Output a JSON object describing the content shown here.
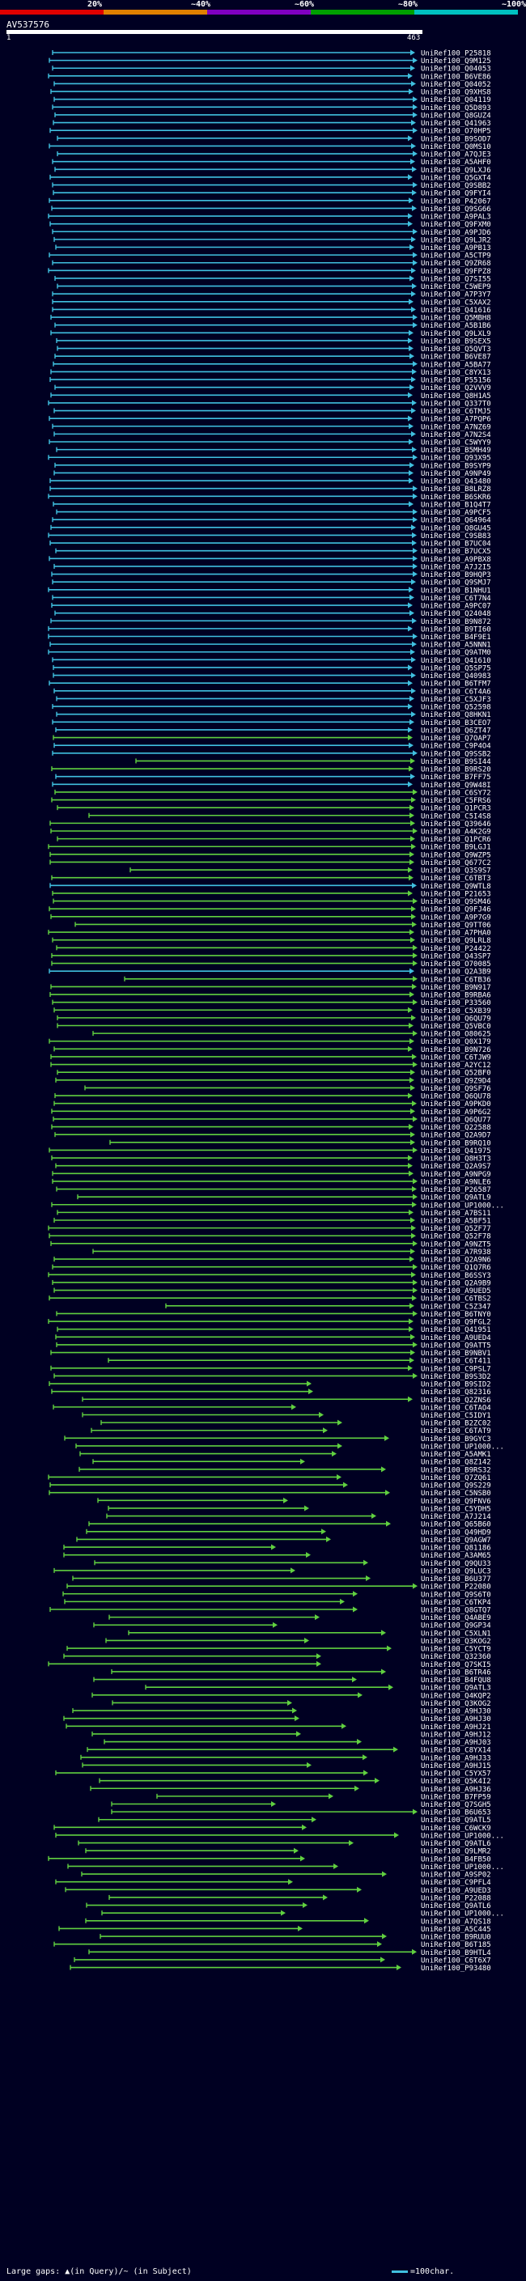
{
  "legend": {
    "labels": [
      "20%",
      "~40%",
      "~60%",
      "~80%",
      "~100%"
    ],
    "colors": [
      "#e00000",
      "#e08000",
      "#8000c0",
      "#00a000",
      "#00c0c0"
    ]
  },
  "query": {
    "title": "AV537576",
    "start": "1",
    "end": "463"
  },
  "footer": {
    "left": "Large gaps: ▲(in Query)/~ (in Subject)",
    "right": "=100char."
  },
  "colors": {
    "background": "#000022",
    "hit_blue": "#40c0e0",
    "hit_green": "#60d040",
    "hit_dark_green": "#208020",
    "text": "#ffffff"
  },
  "hit_names": [
    "UniRef100_P25818",
    "UniRef100_Q9M125",
    "UniRef100_Q04053",
    "UniRef100_B6VE86",
    "UniRef100_Q04052",
    "UniRef100_Q9XHS8",
    "UniRef100_Q04119",
    "UniRef100_Q5D893",
    "UniRef100_Q8GUZ4",
    "UniRef100_Q41963",
    "UniRef100_O70HP5",
    "UniRef100_B9SOD7",
    "UniRef100_Q0MS10",
    "UniRef100_A7QJE3",
    "UniRef100_A5AHF0",
    "UniRef100_Q9LXJ6",
    "UniRef100_Q5GXT4",
    "UniRef100_Q9SBB2",
    "UniRef100_Q9FYI4",
    "UniRef100_P42067",
    "UniRef100_Q9SG66",
    "UniRef100_A9PAL3",
    "UniRef100_Q9FXM0",
    "UniRef100_A9PJD6",
    "UniRef100_Q9LJR2",
    "UniRef100_A9PB13",
    "UniRef100_A5CTP9",
    "UniRef100_Q9ZR68",
    "UniRef100_Q9FPZ8",
    "UniRef100_Q7SI55",
    "UniRef100_C5WEP9",
    "UniRef100_A7P3Y7",
    "UniRef100_C5XAX2",
    "UniRef100_Q41616",
    "UniRef100_Q5MBH8",
    "UniRef100_A5B1B6",
    "UniRef100_Q9LXL9",
    "UniRef100_B9SEX5",
    "UniRef100_Q5QVT3",
    "UniRef100_B6VE87",
    "UniRef100_A5BA77",
    "UniRef100_C8YX13",
    "UniRef100_P55156",
    "UniRef100_Q2VVV9",
    "UniRef100_Q8H1A5",
    "UniRef100_Q337T0",
    "UniRef100_C6TMJ5",
    "UniRef100_A7PQP6",
    "UniRef100_A7NZ69",
    "UniRef100_A7N2S4",
    "UniRef100_C5WYY9",
    "UniRef100_B5MH49",
    "UniRef100_Q93X95",
    "UniRef100_B9SYP9",
    "UniRef100_A9NP49",
    "UniRef100_Q43480",
    "UniRef100_B8LRZ8",
    "UniRef100_B6SKR6",
    "UniRef100_B1Q4T7",
    "UniRef100_A9PCF5",
    "UniRef100_Q64964",
    "UniRef100_Q8GU45",
    "UniRef100_C9SB83",
    "UniRef100_B7UC04",
    "UniRef100_B7UCX5",
    "UniRef100_A9PBX8",
    "UniRef100_A7J2I5",
    "UniRef100_B9HQP3",
    "UniRef100_Q9SMJ7",
    "UniRef100_B1NHU1",
    "UniRef100_C6T7N4",
    "UniRef100_A9PC07",
    "UniRef100_Q24048",
    "UniRef100_B9N872",
    "UniRef100_B9TI60",
    "UniRef100_B4F9E1",
    "UniRef100_A5NNN1",
    "UniRef100_Q9ATM0",
    "UniRef100_Q41610",
    "UniRef100_Q5SP75",
    "UniRef100_Q40983",
    "UniRef100_B6TFM7",
    "UniRef100_C6T4A6",
    "UniRef100_C5XJF3",
    "UniRef100_Q52598",
    "UniRef100_Q8HKN1",
    "UniRef100_B3CEO7",
    "UniRef100_Q6ZT47",
    "UniRef100_Q7OAP7",
    "UniRef100_C9P4O4",
    "UniRef100_Q9SSB2",
    "UniRef100_B9SI44",
    "UniRef100_B9RS20",
    "UniRef100_B7FF75",
    "UniRef100_Q9W48I",
    "UniRef100_C6SY72",
    "UniRef100_C5FRS6",
    "UniRef100_Q1PCR3",
    "UniRef100_C5I4S8",
    "UniRef100_Q39646",
    "UniRef100_A4K2G9",
    "UniRef100_Q1PCR6",
    "UniRef100_B9LGJ1",
    "UniRef100_Q9WZP5",
    "UniRef100_Q677C2",
    "UniRef100_Q3S9S7",
    "UniRef100_C6TBT3",
    "UniRef100_Q9WTL8",
    "UniRef100_P21653",
    "UniRef100_Q9SM46",
    "UniRef100_Q9FJ46",
    "UniRef100_A9P7G9",
    "UniRef100_Q9TT06",
    "UniRef100_A7PHA0",
    "UniRef100_Q9LRL8",
    "UniRef100_P24422",
    "UniRef100_Q43SP7",
    "UniRef100_O70085",
    "UniRef100_Q2A3B9",
    "UniRef100_C6TB36",
    "UniRef100_B9N917",
    "UniRef100_B9RBA6",
    "UniRef100_P33560",
    "UniRef100_C5XB39",
    "UniRef100_Q6QU79",
    "UniRef100_Q5VBC0",
    "UniRef100_O80625",
    "UniRef100_Q0X179",
    "UniRef100_B9N726",
    "UniRef100_C6TJW9",
    "UniRef100_A2YC12",
    "UniRef100_Q52BF0",
    "UniRef100_Q9Z9D4",
    "UniRef100_Q9SF76",
    "UniRef100_Q6QU78",
    "UniRef100_A9PKD0",
    "UniRef100_A9P6G2",
    "UniRef100_Q6QU77",
    "UniRef100_Q22588",
    "UniRef100_Q2A9D7",
    "UniRef100_B9RQ10",
    "UniRef100_Q41975",
    "UniRef100_Q8H3T3",
    "UniRef100_Q2A9S7",
    "UniRef100_A9NPG9",
    "UniRef100_A9NLE6",
    "UniRef100_P26587",
    "UniRef100_Q9ATL9",
    "UniRef100_UP1000...",
    "UniRef100_A7BS11",
    "UniRef100_A5BF51",
    "UniRef100_Q5ZF77",
    "UniRef100_Q52F78",
    "UniRef100_A9NZT5",
    "UniRef100_A7R938",
    "UniRef100_Q2A9N6",
    "UniRef100_Q1Q7R6",
    "UniRef100_B6SSY3",
    "UniRef100_Q2A9B9",
    "UniRef100_A9UED5",
    "UniRef100_C6TBS2",
    "UniRef100_C5Z347",
    "UniRef100_B6TNY0",
    "UniRef100_Q9FGL2",
    "UniRef100_Q41951",
    "UniRef100_A9UED4",
    "UniRef100_Q9ATT5",
    "UniRef100_B9NBV1",
    "UniRef100_C6T411",
    "UniRef100_C9PSL7",
    "UniRef100_B9S3D2",
    "UniRef100_B9SID2",
    "UniRef100_Q82316",
    "UniRef100_Q2ZNS6",
    "UniRef100_C6TAO4",
    "UniRef100_C5IDY1",
    "UniRef100_B2ZC02",
    "UniRef100_C6TAT9",
    "UniRef100_B9GYC3",
    "UniRef100_UP1000...",
    "UniRef100_A5AMK1",
    "UniRef100_Q8Z142",
    "UniRef100_B9RS32",
    "UniRef100_Q7ZQ61",
    "UniRef100_Q9S229",
    "UniRef100_C5NSB0",
    "UniRef100_Q9FNV6",
    "UniRef100_C5YDH5",
    "UniRef100_A7J214",
    "UniRef100_Q65B60",
    "UniRef100_Q49HD9",
    "UniRef100_Q9AGW7",
    "UniRef100_Q81186",
    "UniRef100_A3AM65",
    "UniRef100_Q9QU33",
    "UniRef100_Q9LUC3",
    "UniRef100_B6U377",
    "UniRef100_P22080",
    "UniRef100_Q9S6T0",
    "UniRef100_C6TKP4",
    "UniRef100_Q8GTQ7",
    "UniRef100_Q4ABE9",
    "UniRef100_Q9GP34",
    "UniRef100_C5XLN1",
    "UniRef100_Q3KOG2",
    "UniRef100_C5YCT9",
    "UniRef100_Q32360",
    "UniRef100_Q7SKI5",
    "UniRef100_B6TR46",
    "UniRef100_B4FQU8",
    "UniRef100_Q9ATL3",
    "UniRef100_Q4KQP2",
    "UniRef100_Q3KOG2",
    "UniRef100_A9HJ30",
    "UniRef100_A9HJ30",
    "UniRef100_A9HJ21",
    "UniRef100_A9HJ12",
    "UniRef100_A9HJ03",
    "UniRef100_C8YX14",
    "UniRef100_A9HJ33",
    "UniRef100_A9HJ15",
    "UniRef100_C5YX57",
    "UniRef100_Q5K4I2",
    "UniRef100_A9HJ36",
    "UniRef100_B7FP59",
    "UniRef100_Q7SGH5",
    "UniRef100_B6U653",
    "UniRef100_Q9ATL5",
    "UniRef100_C6WCK9",
    "UniRef100_UP1000...",
    "UniRef100_Q9ATL6",
    "UniRef100_Q9LMR2",
    "UniRef100_B4FB50",
    "UniRef100_UP1000...",
    "UniRef100_A9SP02",
    "UniRef100_C9PFL4",
    "UniRef100_A9UED3",
    "UniRef100_P22088",
    "UniRef100_Q9ATL6",
    "UniRef100_UP1000...",
    "UniRef100_A7QS18",
    "UniRef100_A5C445",
    "UniRef100_B9RUU0",
    "UniRef100_B6T185",
    "UniRef100_B9HTL4",
    "UniRef100_C6T6X7",
    "UniRef100_P93480"
  ]
}
